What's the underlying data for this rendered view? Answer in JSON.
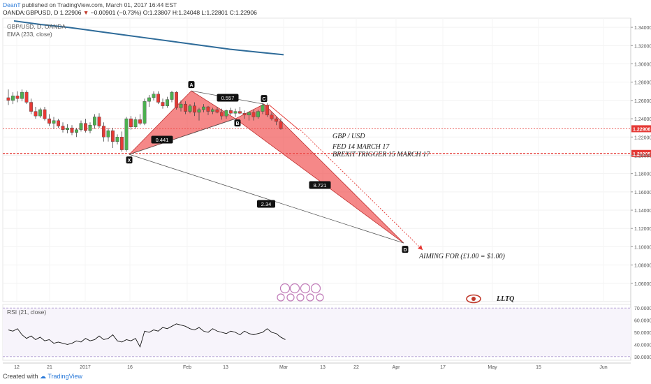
{
  "header": {
    "user": "DeanT",
    "published": "published on TradingView.com, March 01, 2017 16:44 EST",
    "symbol_line_prefix": "OANDA:GBPUSD, D  1.22906",
    "change_arrow": "▼",
    "change": "−0.00901 (−0.73%)",
    "ohlc": "O:1.23807 H:1.24048 L:1.22801 C:1.22906"
  },
  "legend": {
    "series": "GBP/USD, D, OANDA",
    "ema": "EMA (233, close)",
    "rsi": "RSI (21, close)"
  },
  "annotations": {
    "note1": "GBP / USD",
    "note2": "FED 14 MARCH 17",
    "note3": "BREXIT TRIGGER 15 MARCH 17",
    "aim": "AIMING FOR (£1.00 = $1.00)",
    "sig": "LLTQ"
  },
  "footer": {
    "created": "Created with",
    "brand": "TradingView"
  },
  "colors": {
    "up": "#4caf50",
    "down": "#e53935",
    "ema": "#2e6b99",
    "pattern": "#f04848",
    "hline": "#e53935"
  },
  "chart_data": {
    "type": "candlestick",
    "price_axis": {
      "ticks": [
        "1.34000",
        "1.32000",
        "1.30000",
        "1.28000",
        "1.26000",
        "1.24000",
        "1.22000",
        "1.20000",
        "1.18000",
        "1.16000",
        "1.14000",
        "1.12000",
        "1.10000",
        "1.08000",
        "1.06000"
      ],
      "range": [
        1.04,
        1.35
      ]
    },
    "time_axis": {
      "ticks": [
        "12",
        "21",
        "2017",
        "16",
        "Feb",
        "13",
        "Mar",
        "13",
        "22",
        "Apr",
        "17",
        "May",
        "15",
        "Jun"
      ]
    },
    "price_labels": [
      {
        "value": "1.22906",
        "price": 1.22906
      },
      {
        "value": "1.20205",
        "price": 1.20205
      }
    ],
    "candles": [
      {
        "o": 1.263,
        "h": 1.272,
        "l": 1.255,
        "c": 1.26
      },
      {
        "o": 1.26,
        "h": 1.269,
        "l": 1.256,
        "c": 1.265
      },
      {
        "o": 1.265,
        "h": 1.27,
        "l": 1.258,
        "c": 1.262
      },
      {
        "o": 1.262,
        "h": 1.272,
        "l": 1.259,
        "c": 1.269
      },
      {
        "o": 1.269,
        "h": 1.271,
        "l": 1.256,
        "c": 1.258
      },
      {
        "o": 1.258,
        "h": 1.262,
        "l": 1.245,
        "c": 1.248
      },
      {
        "o": 1.248,
        "h": 1.253,
        "l": 1.24,
        "c": 1.243
      },
      {
        "o": 1.243,
        "h": 1.252,
        "l": 1.241,
        "c": 1.25
      },
      {
        "o": 1.25,
        "h": 1.253,
        "l": 1.238,
        "c": 1.24
      },
      {
        "o": 1.24,
        "h": 1.245,
        "l": 1.232,
        "c": 1.235
      },
      {
        "o": 1.235,
        "h": 1.242,
        "l": 1.229,
        "c": 1.238
      },
      {
        "o": 1.238,
        "h": 1.24,
        "l": 1.23,
        "c": 1.232
      },
      {
        "o": 1.232,
        "h": 1.236,
        "l": 1.225,
        "c": 1.228
      },
      {
        "o": 1.228,
        "h": 1.234,
        "l": 1.224,
        "c": 1.23
      },
      {
        "o": 1.23,
        "h": 1.233,
        "l": 1.222,
        "c": 1.225
      },
      {
        "o": 1.225,
        "h": 1.23,
        "l": 1.22,
        "c": 1.228
      },
      {
        "o": 1.228,
        "h": 1.238,
        "l": 1.226,
        "c": 1.235
      },
      {
        "o": 1.235,
        "h": 1.24,
        "l": 1.225,
        "c": 1.227
      },
      {
        "o": 1.227,
        "h": 1.236,
        "l": 1.224,
        "c": 1.233
      },
      {
        "o": 1.233,
        "h": 1.245,
        "l": 1.229,
        "c": 1.242
      },
      {
        "o": 1.242,
        "h": 1.246,
        "l": 1.23,
        "c": 1.232
      },
      {
        "o": 1.232,
        "h": 1.236,
        "l": 1.215,
        "c": 1.22
      },
      {
        "o": 1.22,
        "h": 1.23,
        "l": 1.215,
        "c": 1.227
      },
      {
        "o": 1.227,
        "h": 1.23,
        "l": 1.208,
        "c": 1.215
      },
      {
        "o": 1.215,
        "h": 1.223,
        "l": 1.212,
        "c": 1.22
      },
      {
        "o": 1.22,
        "h": 1.226,
        "l": 1.204,
        "c": 1.206
      },
      {
        "o": 1.206,
        "h": 1.242,
        "l": 1.204,
        "c": 1.24
      },
      {
        "o": 1.24,
        "h": 1.243,
        "l": 1.228,
        "c": 1.231
      },
      {
        "o": 1.231,
        "h": 1.242,
        "l": 1.229,
        "c": 1.239
      },
      {
        "o": 1.239,
        "h": 1.245,
        "l": 1.233,
        "c": 1.235
      },
      {
        "o": 1.235,
        "h": 1.262,
        "l": 1.233,
        "c": 1.259
      },
      {
        "o": 1.259,
        "h": 1.266,
        "l": 1.253,
        "c": 1.263
      },
      {
        "o": 1.263,
        "h": 1.27,
        "l": 1.26,
        "c": 1.267
      },
      {
        "o": 1.267,
        "h": 1.27,
        "l": 1.256,
        "c": 1.258
      },
      {
        "o": 1.258,
        "h": 1.262,
        "l": 1.251,
        "c": 1.254
      },
      {
        "o": 1.254,
        "h": 1.264,
        "l": 1.252,
        "c": 1.261
      },
      {
        "o": 1.261,
        "h": 1.2705,
        "l": 1.258,
        "c": 1.269
      },
      {
        "o": 1.269,
        "h": 1.27,
        "l": 1.25,
        "c": 1.252
      },
      {
        "o": 1.252,
        "h": 1.26,
        "l": 1.248,
        "c": 1.256
      },
      {
        "o": 1.256,
        "h": 1.259,
        "l": 1.245,
        "c": 1.248
      },
      {
        "o": 1.248,
        "h": 1.256,
        "l": 1.246,
        "c": 1.254
      },
      {
        "o": 1.254,
        "h": 1.258,
        "l": 1.243,
        "c": 1.247
      },
      {
        "o": 1.247,
        "h": 1.252,
        "l": 1.238,
        "c": 1.25
      },
      {
        "o": 1.25,
        "h": 1.256,
        "l": 1.247,
        "c": 1.253
      },
      {
        "o": 1.253,
        "h": 1.254,
        "l": 1.244,
        "c": 1.248
      },
      {
        "o": 1.248,
        "h": 1.252,
        "l": 1.245,
        "c": 1.25
      },
      {
        "o": 1.25,
        "h": 1.253,
        "l": 1.246,
        "c": 1.247
      },
      {
        "o": 1.247,
        "h": 1.251,
        "l": 1.239,
        "c": 1.243
      },
      {
        "o": 1.243,
        "h": 1.25,
        "l": 1.24,
        "c": 1.249
      },
      {
        "o": 1.249,
        "h": 1.252,
        "l": 1.244,
        "c": 1.246
      },
      {
        "o": 1.246,
        "h": 1.251,
        "l": 1.242,
        "c": 1.248
      },
      {
        "o": 1.248,
        "h": 1.253,
        "l": 1.245,
        "c": 1.246
      },
      {
        "o": 1.246,
        "h": 1.249,
        "l": 1.24,
        "c": 1.244
      },
      {
        "o": 1.244,
        "h": 1.248,
        "l": 1.238,
        "c": 1.247
      },
      {
        "o": 1.247,
        "h": 1.25,
        "l": 1.238,
        "c": 1.242
      },
      {
        "o": 1.242,
        "h": 1.25,
        "l": 1.24,
        "c": 1.248
      },
      {
        "o": 1.248,
        "h": 1.257,
        "l": 1.245,
        "c": 1.255
      },
      {
        "o": 1.255,
        "h": 1.257,
        "l": 1.242,
        "c": 1.244
      },
      {
        "o": 1.244,
        "h": 1.247,
        "l": 1.238,
        "c": 1.24
      },
      {
        "o": 1.24,
        "h": 1.242,
        "l": 1.233,
        "c": 1.237
      },
      {
        "o": 1.237,
        "h": 1.2405,
        "l": 1.228,
        "c": 1.2291
      }
    ],
    "ema": [
      {
        "x": 1.0,
        "y": 1.347
      },
      {
        "x": 0.9,
        "y": 1.343
      },
      {
        "x": 0.8,
        "y": 1.34
      },
      {
        "x": 0.7,
        "y": 1.336
      },
      {
        "x": 0.6,
        "y": 1.332
      },
      {
        "x": 0.5,
        "y": 1.328
      },
      {
        "x": 0.4,
        "y": 1.324
      },
      {
        "x": 0.3,
        "y": 1.32
      },
      {
        "x": 0.2,
        "y": 1.316
      },
      {
        "x": 0.1,
        "y": 1.313
      },
      {
        "x": 0.0,
        "y": 1.31
      }
    ],
    "pattern": {
      "points": [
        {
          "label": "X",
          "price": 1.201
        },
        {
          "label": "A",
          "price": 1.2705
        },
        {
          "label": "B",
          "price": 1.24
        },
        {
          "label": "C",
          "price": 1.256
        },
        {
          "label": "D",
          "price": 1.104
        }
      ],
      "ratios": [
        "0.441",
        "0.557",
        "8.721",
        "2.34"
      ]
    },
    "horizontal_lines": [
      1.22906,
      1.20205
    ],
    "rsi": {
      "ticks": [
        "70.0000",
        "60.0000",
        "50.0000",
        "40.0000",
        "30.0000"
      ],
      "range": [
        27,
        73
      ],
      "values": [
        52,
        51,
        53,
        48,
        45,
        47,
        44,
        46,
        43,
        44,
        41,
        42,
        41,
        40,
        41,
        43,
        42,
        45,
        43,
        44,
        47,
        44,
        45,
        48,
        43,
        42,
        44,
        43,
        45,
        38,
        51,
        50,
        52,
        51,
        54,
        53,
        55,
        57,
        56,
        55,
        53,
        52,
        54,
        51,
        50,
        53,
        51,
        50,
        49,
        51,
        50,
        48,
        51,
        49,
        48,
        49,
        50,
        53,
        50,
        49,
        46,
        44
      ]
    }
  }
}
